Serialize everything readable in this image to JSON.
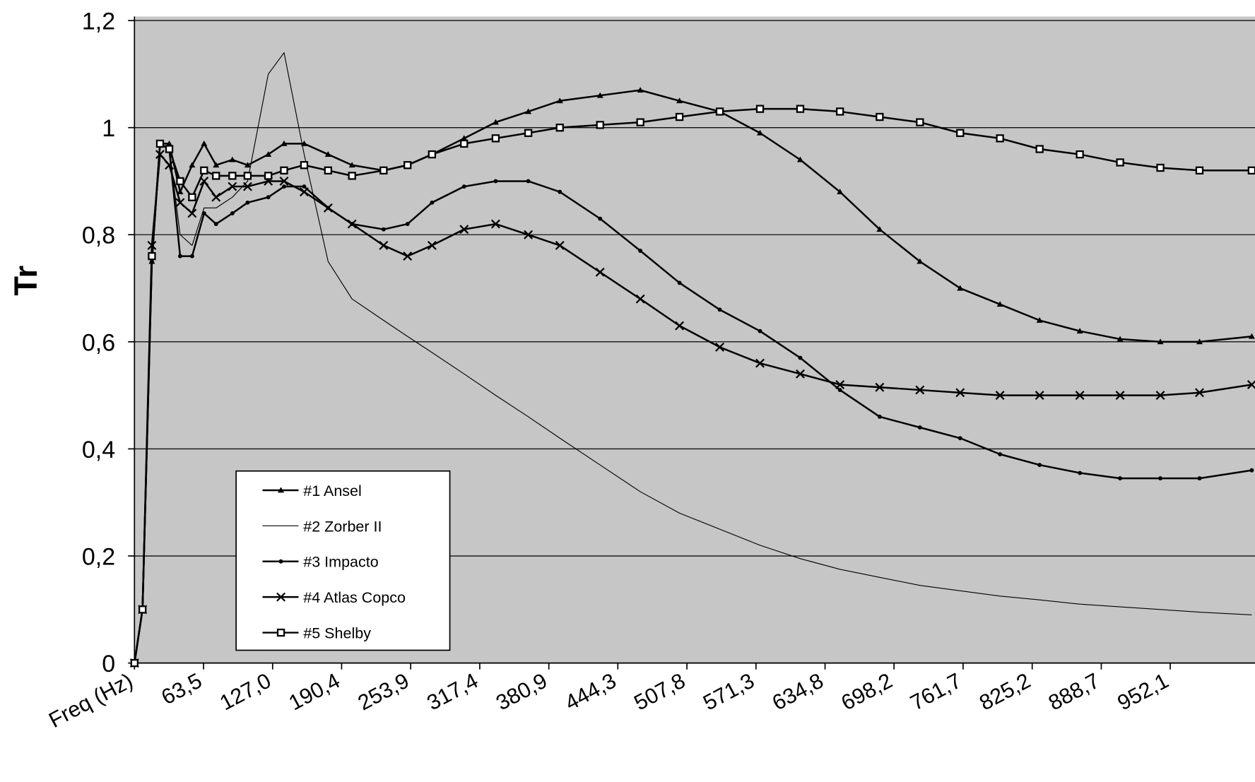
{
  "chart_data": {
    "type": "line",
    "y_label": "Tr",
    "xlim": [
      0,
      1030
    ],
    "ylim": [
      0,
      1.2
    ],
    "xticks": [
      {
        "value": 0,
        "label": "Freq (Hz)"
      },
      {
        "value": 63.5,
        "label": "63,5"
      },
      {
        "value": 127,
        "label": "127,0"
      },
      {
        "value": 190.4,
        "label": "190,4"
      },
      {
        "value": 253.9,
        "label": "253,9"
      },
      {
        "value": 317.4,
        "label": "317,4"
      },
      {
        "value": 380.9,
        "label": "380,9"
      },
      {
        "value": 444.3,
        "label": "444,3"
      },
      {
        "value": 507.8,
        "label": "507,8"
      },
      {
        "value": 571.3,
        "label": "571,3"
      },
      {
        "value": 634.8,
        "label": "634,8"
      },
      {
        "value": 698.2,
        "label": "698,2"
      },
      {
        "value": 761.7,
        "label": "761,7"
      },
      {
        "value": 825.2,
        "label": "825,2"
      },
      {
        "value": 888.7,
        "label": "888,7"
      },
      {
        "value": 952.1,
        "label": "952,1"
      }
    ],
    "yticks": [
      0,
      {
        "value": 0.2,
        "label": "0,2"
      },
      {
        "value": 0.4,
        "label": "0,4"
      },
      {
        "value": 0.6,
        "label": "0,6"
      },
      {
        "value": 0.8,
        "label": "0,8"
      },
      1,
      {
        "value": 1.2,
        "label": "1,2"
      }
    ],
    "grid": true,
    "legend": "lower left",
    "x": [
      0,
      7.4,
      16,
      23.5,
      32,
      42,
      53,
      64,
      75,
      90,
      104,
      123,
      137.5,
      156,
      178,
      200,
      229,
      251,
      273.5,
      303,
      332,
      362,
      391,
      428,
      465,
      501,
      538,
      575,
      612,
      648.5,
      685,
      722,
      759,
      795.6,
      832,
      869,
      906,
      943,
      979,
      1027
    ],
    "series": [
      {
        "name": "#1 Ansel",
        "color": "#000000",
        "marker": "triangle",
        "values": [
          0,
          0.1,
          0.75,
          0.97,
          0.97,
          0.88,
          0.93,
          0.97,
          0.93,
          0.94,
          0.93,
          0.95,
          0.97,
          0.97,
          0.95,
          0.93,
          0.92,
          0.93,
          0.95,
          0.98,
          1.01,
          1.03,
          1.05,
          1.06,
          1.07,
          1.05,
          1.03,
          0.99,
          0.94,
          0.88,
          0.81,
          0.75,
          0.7,
          0.67,
          0.64,
          0.62,
          0.605,
          0.6,
          0.6,
          0.61
        ]
      },
      {
        "name": "#2 Zorber II",
        "color": "#000000",
        "marker": "none",
        "values": [
          0,
          0.1,
          0.75,
          0.97,
          0.96,
          0.8,
          0.78,
          0.85,
          0.85,
          0.87,
          0.9,
          1.1,
          1.14,
          0.95,
          0.75,
          0.68,
          0.64,
          0.61,
          0.58,
          0.54,
          0.5,
          0.46,
          0.42,
          0.37,
          0.32,
          0.28,
          0.25,
          0.22,
          0.195,
          0.175,
          0.16,
          0.145,
          0.135,
          0.125,
          0.118,
          0.11,
          0.105,
          0.1,
          0.095,
          0.09
        ]
      },
      {
        "name": "#3 Impacto",
        "color": "#000000",
        "marker": "dot",
        "values": [
          0,
          0.1,
          0.75,
          0.97,
          0.96,
          0.76,
          0.76,
          0.84,
          0.82,
          0.84,
          0.86,
          0.87,
          0.89,
          0.89,
          0.85,
          0.82,
          0.81,
          0.82,
          0.86,
          0.89,
          0.9,
          0.9,
          0.88,
          0.83,
          0.77,
          0.71,
          0.66,
          0.62,
          0.57,
          0.51,
          0.46,
          0.44,
          0.42,
          0.39,
          0.37,
          0.355,
          0.345,
          0.345,
          0.345,
          0.36
        ]
      },
      {
        "name": "#4 Atlas Copco",
        "color": "#000000",
        "marker": "x",
        "values": [
          0,
          0.1,
          0.78,
          0.95,
          0.93,
          0.86,
          0.84,
          0.9,
          0.87,
          0.89,
          0.89,
          0.9,
          0.9,
          0.88,
          0.85,
          0.82,
          0.78,
          0.76,
          0.78,
          0.81,
          0.82,
          0.8,
          0.78,
          0.73,
          0.68,
          0.63,
          0.59,
          0.56,
          0.54,
          0.52,
          0.515,
          0.51,
          0.505,
          0.5,
          0.5,
          0.5,
          0.5,
          0.5,
          0.505,
          0.52
        ]
      },
      {
        "name": "#5 Shelby",
        "color": "#000000",
        "marker": "square",
        "values": [
          0,
          0.1,
          0.76,
          0.97,
          0.96,
          0.9,
          0.87,
          0.92,
          0.91,
          0.91,
          0.91,
          0.91,
          0.92,
          0.93,
          0.92,
          0.91,
          0.92,
          0.93,
          0.95,
          0.97,
          0.98,
          0.99,
          1,
          1.005,
          1.01,
          1.02,
          1.03,
          1.035,
          1.035,
          1.03,
          1.02,
          1.01,
          0.99,
          0.98,
          0.96,
          0.95,
          0.935,
          0.925,
          0.92,
          0.92
        ]
      }
    ]
  }
}
